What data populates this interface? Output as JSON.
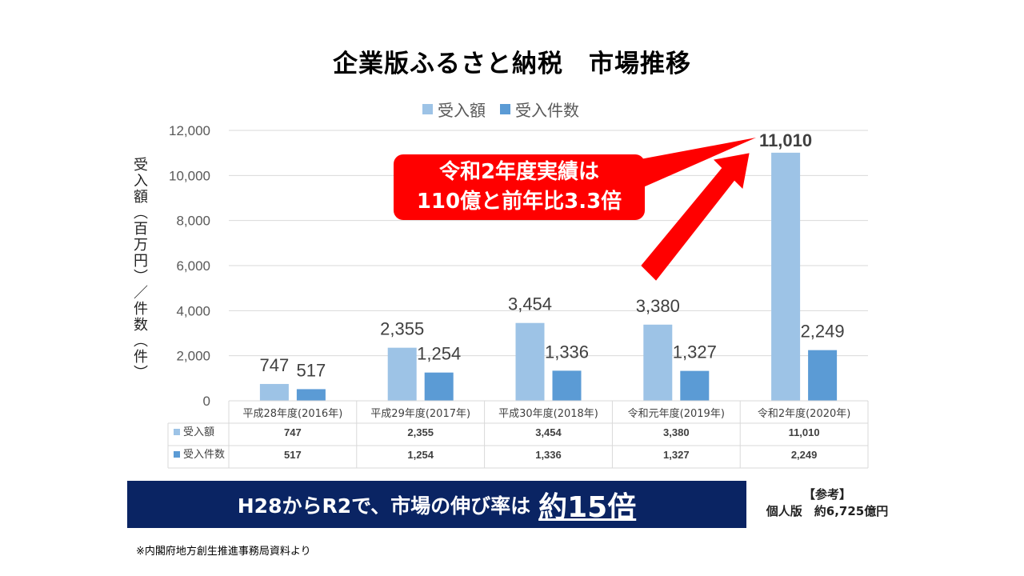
{
  "title": "企業版ふるさと納税　市場推移",
  "callout": {
    "line1": "令和2年度実績は",
    "line2": "110億と前年比3.3倍"
  },
  "banner": {
    "text": "H28からR2で、市場の伸び率は",
    "emphasis": "約15倍"
  },
  "reference": {
    "label": "【参考】",
    "text": "個人版　約6,725億円"
  },
  "source": "※内閣府地方創生推進事務局資料より",
  "chart_data": {
    "type": "bar",
    "ylabel": "受入額（百万円）／件数（件）",
    "ylim": [
      0,
      12000
    ],
    "yticks": [
      "0",
      "2,000",
      "4,000",
      "6,000",
      "8,000",
      "10,000",
      "12,000"
    ],
    "grid": true,
    "legend_position": "top",
    "categories": [
      "平成28年度(2016年)",
      "平成29年度(2017年)",
      "平成30年度(2018年)",
      "令和元年度(2019年)",
      "令和2年度(2020年)"
    ],
    "series": [
      {
        "name": "受入額",
        "color": "#9dc3e6",
        "values": [
          747,
          2355,
          3454,
          3380,
          11010
        ],
        "labels": [
          "747",
          "2,355",
          "3,454",
          "3,380",
          "11,010"
        ]
      },
      {
        "name": "受入件数",
        "color": "#5b9bd5",
        "values": [
          517,
          1254,
          1336,
          1327,
          2249
        ],
        "labels": [
          "517",
          "1,254",
          "1,336",
          "1,327",
          "2,249"
        ]
      }
    ]
  }
}
